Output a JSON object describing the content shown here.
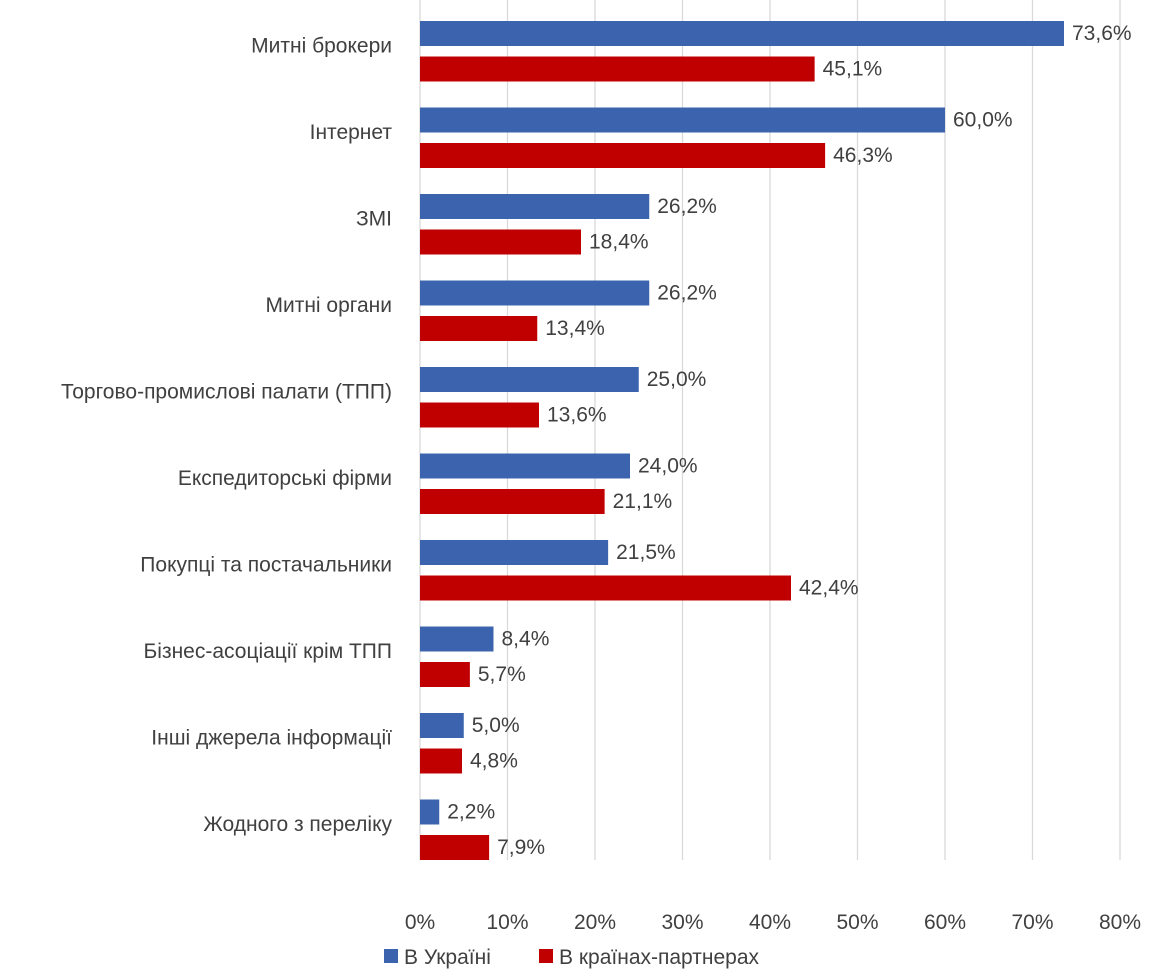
{
  "chart_data": {
    "type": "bar",
    "orientation": "horizontal",
    "categories": [
      "Митні брокери",
      "Інтернет",
      "ЗМІ",
      "Митні органи",
      "Торгово-промислові палати (ТПП)",
      "Експедиторські фірми",
      "Покупці та постачальники",
      "Бізнес-асоціації крім ТПП",
      "Інші джерела інформації",
      "Жодного з переліку"
    ],
    "series": [
      {
        "name": "В Україні",
        "color": "#3c64ae",
        "values": [
          73.6,
          60.0,
          26.2,
          26.2,
          25.0,
          24.0,
          21.5,
          8.4,
          5.0,
          2.2
        ],
        "labels": [
          "73,6%",
          "60,0%",
          "26,2%",
          "26,2%",
          "25,0%",
          "24,0%",
          "21,5%",
          "8,4%",
          "5,0%",
          "2,2%"
        ]
      },
      {
        "name": "В країнах-партнерах",
        "color": "#c00000",
        "values": [
          45.1,
          46.3,
          18.4,
          13.4,
          13.6,
          21.1,
          42.4,
          5.7,
          4.8,
          7.9
        ],
        "labels": [
          "45,1%",
          "46,3%",
          "18,4%",
          "13,4%",
          "13,6%",
          "21,1%",
          "42,4%",
          "5,7%",
          "4,8%",
          "7,9%"
        ]
      }
    ],
    "xlim": [
      0,
      80
    ],
    "xticks": [
      "0%",
      "10%",
      "20%",
      "30%",
      "40%",
      "50%",
      "60%",
      "70%",
      "80%"
    ],
    "grid": true,
    "legend_position": "bottom",
    "title": "",
    "xlabel": "",
    "ylabel": ""
  }
}
